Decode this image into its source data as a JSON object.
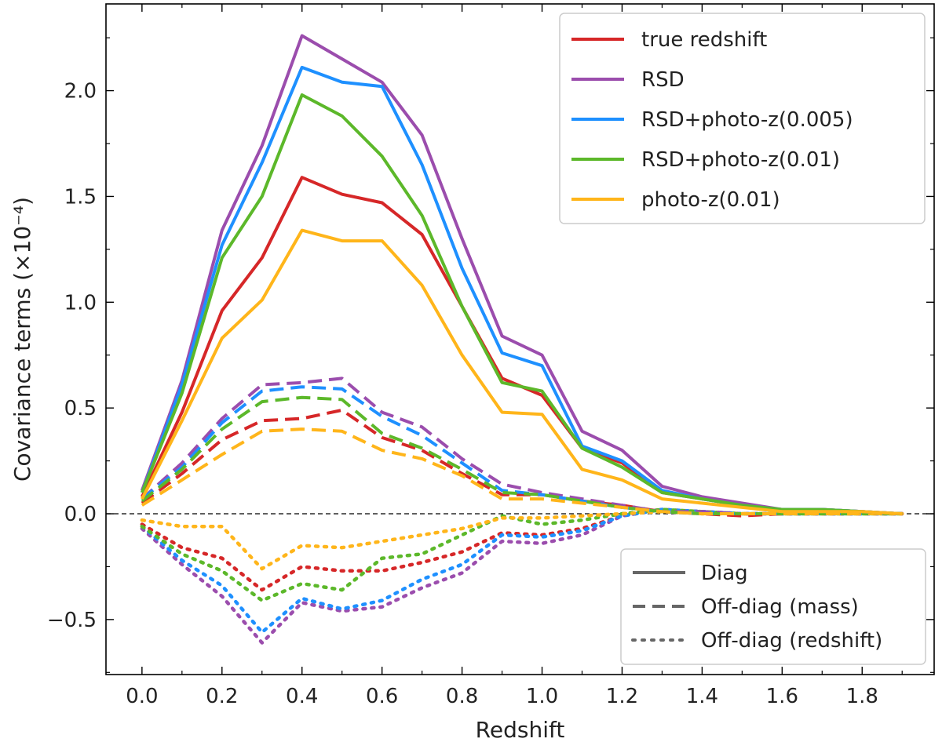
{
  "chart_data": {
    "type": "line",
    "xlabel": "Redshift",
    "ylabel": "Covariance terms (×10⁻⁴)",
    "xlim": [
      -0.09,
      1.98
    ],
    "ylim": [
      -0.76,
      2.41
    ],
    "x_ticks": [
      0.0,
      0.2,
      0.4,
      0.6,
      0.8,
      1.0,
      1.2,
      1.4,
      1.6,
      1.8
    ],
    "x_tick_labels": [
      "0.0",
      "0.2",
      "0.4",
      "0.6",
      "0.8",
      "1.0",
      "1.2",
      "1.4",
      "1.6",
      "1.8"
    ],
    "y_ticks": [
      -0.5,
      0.0,
      0.5,
      1.0,
      1.5,
      2.0
    ],
    "y_tick_labels": [
      "−0.5",
      "0.0",
      "0.5",
      "1.0",
      "1.5",
      "2.0"
    ],
    "zero_line": true,
    "grid": false,
    "x": [
      0.0,
      0.1,
      0.2,
      0.3,
      0.4,
      0.5,
      0.6,
      0.7,
      0.8,
      0.9,
      1.0,
      1.1,
      1.2,
      1.3,
      1.4,
      1.5,
      1.6,
      1.7,
      1.8,
      1.9
    ],
    "series": [
      {
        "name": "true redshift",
        "color": "#d62728",
        "diag": [
          0.08,
          0.48,
          0.96,
          1.21,
          1.59,
          1.51,
          1.47,
          1.32,
          0.98,
          0.64,
          0.56,
          0.31,
          0.24,
          0.1,
          0.07,
          0.04,
          0.02,
          0.02,
          0.01,
          0.0
        ],
        "offdiag_mass": [
          0.05,
          0.19,
          0.35,
          0.44,
          0.45,
          0.49,
          0.36,
          0.3,
          0.19,
          0.09,
          0.09,
          0.06,
          0.04,
          0.01,
          0.0,
          -0.01,
          0.0,
          0.0,
          0.0,
          0.0
        ],
        "offdiag_redshift": [
          -0.05,
          -0.16,
          -0.21,
          -0.36,
          -0.25,
          -0.27,
          -0.27,
          -0.23,
          -0.18,
          -0.09,
          -0.1,
          -0.07,
          -0.01,
          0.02,
          0.01,
          0.0,
          0.0,
          0.0,
          0.0,
          0.0
        ]
      },
      {
        "name": "RSD",
        "color": "#9b4dad",
        "diag": [
          0.11,
          0.63,
          1.34,
          1.74,
          2.26,
          2.15,
          2.04,
          1.79,
          1.3,
          0.84,
          0.75,
          0.39,
          0.3,
          0.13,
          0.08,
          0.05,
          0.02,
          0.02,
          0.01,
          0.0
        ],
        "offdiag_mass": [
          0.07,
          0.24,
          0.45,
          0.61,
          0.62,
          0.64,
          0.48,
          0.41,
          0.26,
          0.14,
          0.1,
          0.07,
          0.04,
          0.01,
          0.01,
          0.0,
          0.0,
          0.0,
          0.0,
          0.0
        ],
        "offdiag_redshift": [
          -0.07,
          -0.24,
          -0.39,
          -0.61,
          -0.42,
          -0.46,
          -0.44,
          -0.35,
          -0.28,
          -0.13,
          -0.14,
          -0.1,
          -0.01,
          0.02,
          0.01,
          0.0,
          0.0,
          0.0,
          0.0,
          0.0
        ]
      },
      {
        "name": "RSD+photo-z(0.005)",
        "color": "#1e90ff",
        "diag": [
          0.1,
          0.61,
          1.27,
          1.66,
          2.11,
          2.04,
          2.02,
          1.65,
          1.16,
          0.76,
          0.7,
          0.32,
          0.25,
          0.11,
          0.07,
          0.04,
          0.02,
          0.02,
          0.01,
          0.0
        ],
        "offdiag_mass": [
          0.07,
          0.22,
          0.43,
          0.58,
          0.6,
          0.59,
          0.46,
          0.37,
          0.24,
          0.11,
          0.09,
          0.06,
          0.03,
          0.01,
          0.0,
          0.0,
          0.0,
          0.0,
          0.0,
          0.0
        ],
        "offdiag_redshift": [
          -0.06,
          -0.22,
          -0.34,
          -0.56,
          -0.4,
          -0.45,
          -0.41,
          -0.31,
          -0.24,
          -0.1,
          -0.11,
          -0.08,
          -0.01,
          0.02,
          0.01,
          0.0,
          0.0,
          0.0,
          0.0,
          0.0
        ]
      },
      {
        "name": "RSD+photo-z(0.01)",
        "color": "#5cb82a",
        "diag": [
          0.1,
          0.57,
          1.21,
          1.5,
          1.98,
          1.88,
          1.69,
          1.41,
          0.98,
          0.62,
          0.58,
          0.31,
          0.22,
          0.1,
          0.07,
          0.04,
          0.02,
          0.02,
          0.01,
          0.0
        ],
        "offdiag_mass": [
          0.06,
          0.21,
          0.4,
          0.53,
          0.55,
          0.54,
          0.38,
          0.31,
          0.21,
          0.1,
          0.09,
          0.06,
          0.03,
          0.01,
          0.0,
          0.0,
          0.0,
          0.0,
          0.0,
          0.0
        ],
        "offdiag_redshift": [
          -0.06,
          -0.19,
          -0.27,
          -0.41,
          -0.33,
          -0.36,
          -0.21,
          -0.19,
          -0.1,
          -0.01,
          -0.05,
          -0.03,
          0.0,
          0.02,
          0.01,
          0.0,
          0.0,
          0.0,
          0.0,
          0.0
        ]
      },
      {
        "name": "photo-z(0.01)",
        "color": "#ffb51a",
        "diag": [
          0.07,
          0.44,
          0.83,
          1.01,
          1.34,
          1.29,
          1.29,
          1.08,
          0.75,
          0.48,
          0.47,
          0.21,
          0.16,
          0.07,
          0.05,
          0.03,
          0.01,
          0.01,
          0.01,
          0.0
        ],
        "offdiag_mass": [
          0.04,
          0.16,
          0.28,
          0.39,
          0.4,
          0.39,
          0.3,
          0.26,
          0.18,
          0.07,
          0.07,
          0.05,
          0.03,
          0.01,
          0.0,
          0.0,
          0.0,
          0.0,
          0.0,
          0.0
        ],
        "offdiag_redshift": [
          -0.03,
          -0.06,
          -0.06,
          -0.26,
          -0.15,
          -0.16,
          -0.13,
          -0.1,
          -0.07,
          -0.02,
          -0.02,
          -0.01,
          0.0,
          0.01,
          0.0,
          0.0,
          0.0,
          0.0,
          0.0,
          0.0
        ]
      }
    ],
    "legend_series": {
      "position": "upper-right",
      "entries": [
        "true redshift",
        "RSD",
        "RSD+photo-z(0.005)",
        "RSD+photo-z(0.01)",
        "photo-z(0.01)"
      ]
    },
    "legend_styles": {
      "position": "lower-right",
      "color": "#666666",
      "entries": [
        {
          "label": "Diag",
          "style": "solid"
        },
        {
          "label": "Off-diag (mass)",
          "style": "dashed"
        },
        {
          "label": "Off-diag (redshift)",
          "style": "dotted"
        }
      ]
    }
  }
}
